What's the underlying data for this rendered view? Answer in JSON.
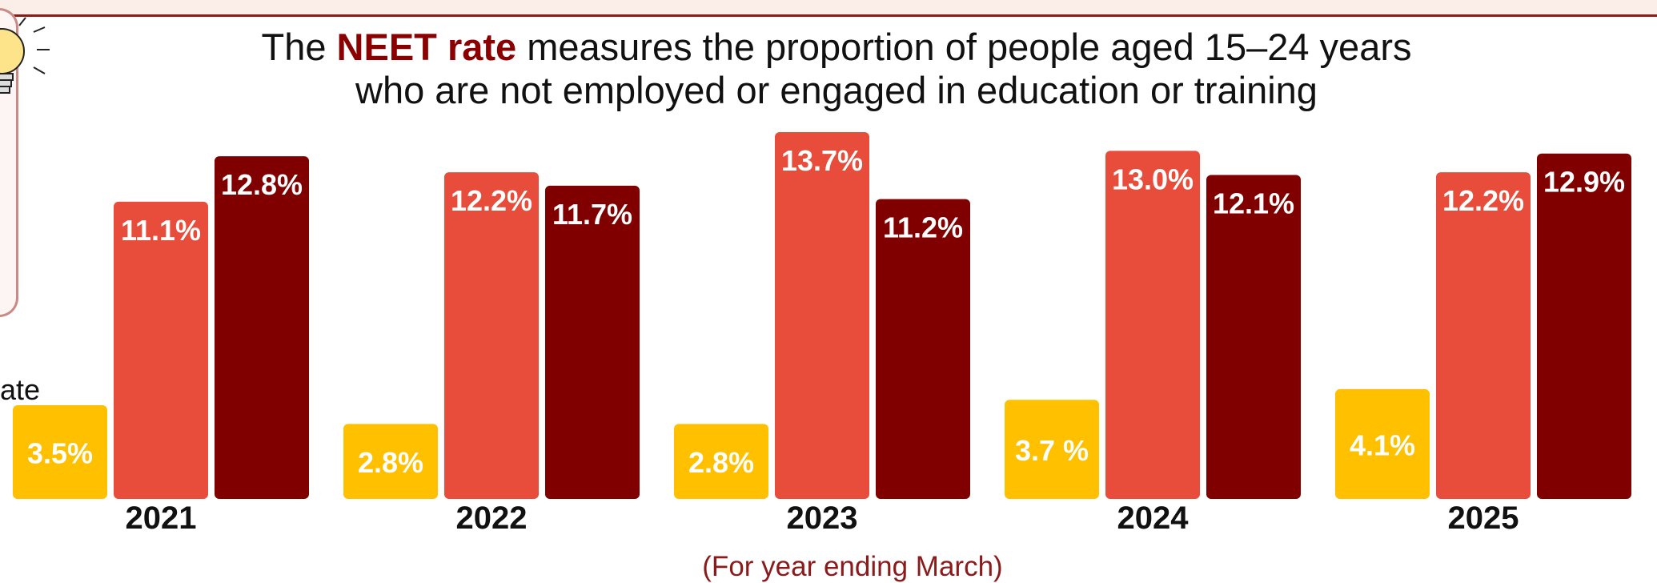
{
  "colors": {
    "series_1": "#ffc000",
    "series_2": "#e84c3a",
    "series_3": "#800000",
    "title_highlight": "#8b0000",
    "note": "#8b1a1a"
  },
  "title": {
    "prefix": "The ",
    "highlight": "NEET rate",
    "line1_rest": " measures the proportion of people aged 15–24 years",
    "line2": "who are not employed or engaged in education or training"
  },
  "cutoff_text": "ate",
  "icons": {
    "idea": "lightbulb-icon"
  },
  "axis_note": "(For year ending March)",
  "chart_data": {
    "type": "bar",
    "categories": [
      "2021",
      "2022",
      "2023",
      "2024",
      "2025"
    ],
    "series": [
      {
        "values": [
          3.5,
          2.8,
          2.8,
          3.7,
          4.1
        ],
        "labels": [
          "3.5%",
          "2.8%",
          "2.8%",
          "3.7 %",
          "4.1%"
        ]
      },
      {
        "values": [
          11.1,
          12.2,
          13.7,
          13.0,
          12.2
        ],
        "labels": [
          "11.1%",
          "12.2%",
          "13.7%",
          "13.0%",
          "12.2%"
        ]
      },
      {
        "values": [
          12.8,
          11.7,
          11.2,
          12.1,
          12.9
        ],
        "labels": [
          "12.8%",
          "11.7%",
          "11.2%",
          "12.1%",
          "12.9%"
        ]
      }
    ],
    "ylim": [
      0,
      13.7
    ],
    "grid": false,
    "legend": "none"
  }
}
